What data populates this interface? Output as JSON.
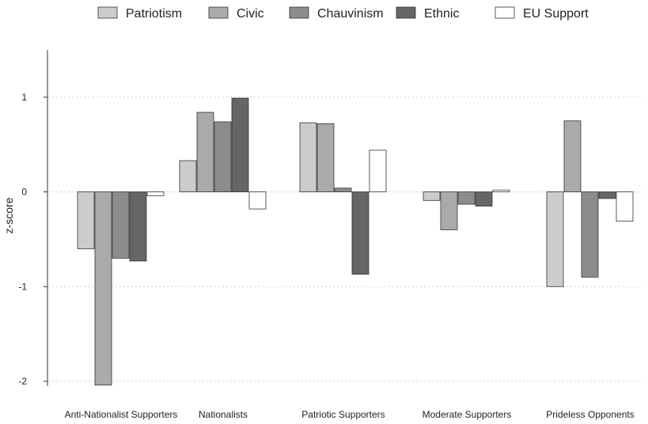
{
  "chart_data": {
    "type": "bar",
    "ylabel": "z-score",
    "ylim": [
      -2.05,
      1.5
    ],
    "yticks": [
      -2,
      -1,
      0,
      1
    ],
    "grid": true,
    "legend_position": "top",
    "categories": [
      "Anti-Nationalist Supporters",
      "Nationalists",
      "Patriotic Supporters",
      "Moderate Supporters",
      "Prideless Opponents"
    ],
    "series": [
      {
        "name": "Patriotism",
        "color": "#cccccc",
        "values": [
          -0.6,
          0.33,
          0.73,
          -0.09,
          -1.0
        ]
      },
      {
        "name": "Civic",
        "color": "#aaaaaa",
        "values": [
          -2.04,
          0.84,
          0.72,
          -0.4,
          0.75
        ]
      },
      {
        "name": "Chauvinism",
        "color": "#8c8c8c",
        "values": [
          -0.7,
          0.74,
          0.04,
          -0.13,
          -0.9
        ]
      },
      {
        "name": "Ethnic",
        "color": "#666666",
        "values": [
          -0.73,
          0.99,
          -0.87,
          -0.15,
          -0.07
        ]
      },
      {
        "name": "EU Support",
        "color": "#ffffff",
        "values": [
          -0.04,
          -0.18,
          0.44,
          0.02,
          -0.31
        ]
      }
    ]
  }
}
